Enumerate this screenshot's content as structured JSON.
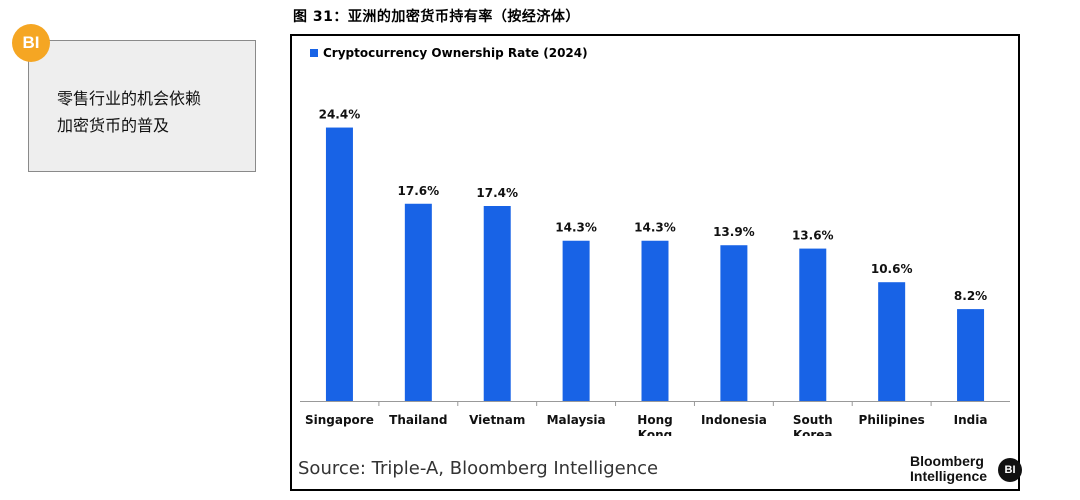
{
  "figure": {
    "title": "图 31：亚洲的加密货币持有率（按经济体）"
  },
  "callout": {
    "badge": "BI",
    "lines": [
      "零售行业的机会依赖",
      "加密货币的普及"
    ]
  },
  "colors": {
    "bar": "#1863e6",
    "badge": "#f5a623"
  },
  "chart_data": {
    "type": "bar",
    "title": "",
    "xlabel": "",
    "ylabel": "",
    "ylim": [
      0,
      29
    ],
    "grid": false,
    "legend": "top-left",
    "series": [
      {
        "name": "Cryptocurrency Ownership Rate (2024)",
        "values": [
          24.4,
          17.6,
          17.4,
          14.3,
          14.3,
          13.9,
          13.6,
          10.6,
          8.2
        ]
      }
    ],
    "categories": [
      [
        "Singapore"
      ],
      [
        "Thailand"
      ],
      [
        "Vietnam"
      ],
      [
        "Malaysia"
      ],
      [
        "Hong",
        "Kong"
      ],
      [
        "Indonesia"
      ],
      [
        "South",
        "Korea"
      ],
      [
        "Philipines"
      ],
      [
        "India"
      ]
    ],
    "value_labels": [
      "24.4%",
      "17.6%",
      "17.4%",
      "14.3%",
      "14.3%",
      "13.9%",
      "13.6%",
      "10.6%",
      "8.2%"
    ]
  },
  "footer": {
    "source": "Source: Triple-A, Bloomberg Intelligence",
    "brand_line1": "Bloomberg",
    "brand_line2": "Intelligence",
    "brand_badge": "BI"
  }
}
